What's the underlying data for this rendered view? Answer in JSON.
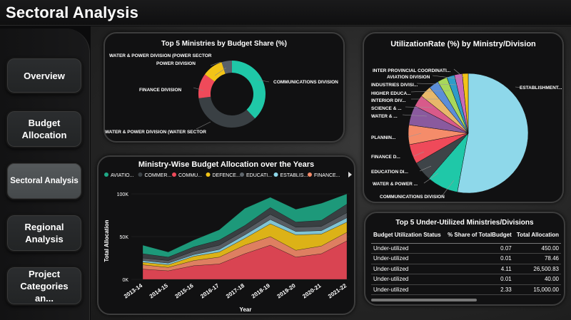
{
  "page": {
    "title": "Sectoral Analysis"
  },
  "nav": {
    "items": [
      {
        "label": "Overview"
      },
      {
        "label": "Budget Allocation"
      },
      {
        "label": "Sectoral Analysis"
      },
      {
        "label": "Regional Analysis"
      },
      {
        "label": "Project Categories an..."
      }
    ]
  },
  "donut": {
    "title": "Top 5 Ministries by Budget Share (%)",
    "slices": [
      {
        "label": "COMMUNICATIONS DIVISION",
        "value": 38,
        "color": "#1fc8a8"
      },
      {
        "label": "WATER & POWER DIVISION (WATER SECTOR",
        "value": 35,
        "color": "#3a4044"
      },
      {
        "label": "FINANCE DIVISION",
        "value": 12,
        "color": "#ef4a5a"
      },
      {
        "label": "POWER DIVISION",
        "value": 10,
        "color": "#f2c418"
      },
      {
        "label": "WATER & POWER DIVISION (POWER SECTOR",
        "value": 5,
        "color": "#59606a"
      }
    ]
  },
  "pie": {
    "title": "UtilizationRate (%) by Ministry/Division",
    "labels": [
      "INTER PROVINCIAL COORDINATI...",
      "AVIATION DIVISION",
      "INDUSTRIES DIVISI...",
      "HIGHER EDUCA...",
      "INTERIOR DIV...",
      "SCIENCE & ...",
      "WATER & ...",
      "PLANNIN...",
      "FINANCE D...",
      "EDUCATION DI...",
      "WATER & POWER ...",
      "COMMUNICATIONS DIVISION",
      "ESTABLISHMENT..."
    ]
  },
  "area": {
    "title": "Ministry-Wise Budget Allocation over the Years",
    "xlabel": "Year",
    "ylabel": "Total Allocation",
    "legend": [
      {
        "name": "AVIATIO...",
        "color": "#1fa886"
      },
      {
        "name": "COMMER...",
        "color": "#3e4448"
      },
      {
        "name": "COMMU...",
        "color": "#ef4a5a"
      },
      {
        "name": "DEFENCE...",
        "color": "#f2c418"
      },
      {
        "name": "EDUCATI...",
        "color": "#5f666c"
      },
      {
        "name": "ESTABLIS...",
        "color": "#8ed8ea"
      },
      {
        "name": "FINANCE...",
        "color": "#f58c6a"
      }
    ]
  },
  "table": {
    "title": "Top 5 Under-Utilized Ministries/Divisions",
    "headers": [
      "Budget Utilization Status",
      "% Share of TotalBudget",
      "Total Allocation"
    ],
    "rows": [
      [
        "Under-utilized",
        "0.07",
        "450.00"
      ],
      [
        "Under-utilized",
        "0.01",
        "78.46"
      ],
      [
        "Under-utilized",
        "4.11",
        "26,500.83"
      ],
      [
        "Under-utilized",
        "0.01",
        "40.00"
      ],
      [
        "Under-utilized",
        "2.33",
        "15,000.00"
      ]
    ]
  },
  "chart_data": [
    {
      "type": "pie",
      "title": "Top 5 Ministries by Budget Share (%)",
      "categories": [
        "COMMUNICATIONS DIVISION",
        "WATER & POWER DIVISION (WATER SECTOR",
        "FINANCE DIVISION",
        "POWER DIVISION",
        "WATER & POWER DIVISION (POWER SECTOR"
      ],
      "values": [
        38,
        35,
        12,
        10,
        5
      ]
    },
    {
      "type": "pie",
      "title": "UtilizationRate (%) by Ministry/Division",
      "categories": [
        "ESTABLISHMENT...",
        "COMMUNICATIONS DIVISION",
        "WATER & POWER ...",
        "EDUCATION DI...",
        "FINANCE D...",
        "PLANNIN...",
        "WATER & ...",
        "SCIENCE & ...",
        "INTERIOR DIV...",
        "HIGHER EDUCA...",
        "INDUSTRIES DIVISI...",
        "AVIATION DIVISION",
        "INTER PROVINCIAL COORDINATI..."
      ],
      "values": [
        50,
        8,
        5,
        5,
        5,
        5,
        3,
        3,
        2.5,
        2.5,
        2,
        2,
        1.5
      ]
    },
    {
      "type": "area",
      "title": "Ministry-Wise Budget Allocation over the Years",
      "xlabel": "Year",
      "ylabel": "Total Allocation",
      "categories": [
        "2013-14",
        "2014-15",
        "2015-16",
        "2016-17",
        "2017-18",
        "2018-19",
        "2019-20",
        "2020-21",
        "2021-22"
      ],
      "ylim": [
        0,
        100000
      ],
      "yticks": [
        "0K",
        "50K",
        "100K"
      ],
      "series": [
        {
          "name": "COMMU...",
          "values": [
            12000,
            10000,
            16000,
            18000,
            30000,
            40000,
            26000,
            30000,
            45000
          ]
        },
        {
          "name": "FINANCE...",
          "values": [
            5000,
            4000,
            6000,
            8000,
            10000,
            10000,
            8000,
            9000,
            10000
          ]
        },
        {
          "name": "DEFENCE...",
          "values": [
            3000,
            3000,
            5000,
            6000,
            8000,
            15000,
            18000,
            14000,
            12000
          ]
        },
        {
          "name": "ESTABLIS...",
          "values": [
            2000,
            2000,
            2000,
            3000,
            4000,
            5000,
            4000,
            4000,
            5000
          ]
        },
        {
          "name": "EDUCATI...",
          "values": [
            3000,
            3000,
            4000,
            5000,
            5000,
            6000,
            5000,
            5000,
            6000
          ]
        },
        {
          "name": "COMMER...",
          "values": [
            5000,
            4000,
            5000,
            6000,
            6000,
            8000,
            6000,
            7000,
            10000
          ]
        },
        {
          "name": "AVIATIO...",
          "values": [
            10000,
            6000,
            8000,
            12000,
            20000,
            12000,
            15000,
            20000,
            12000
          ]
        }
      ]
    }
  ]
}
